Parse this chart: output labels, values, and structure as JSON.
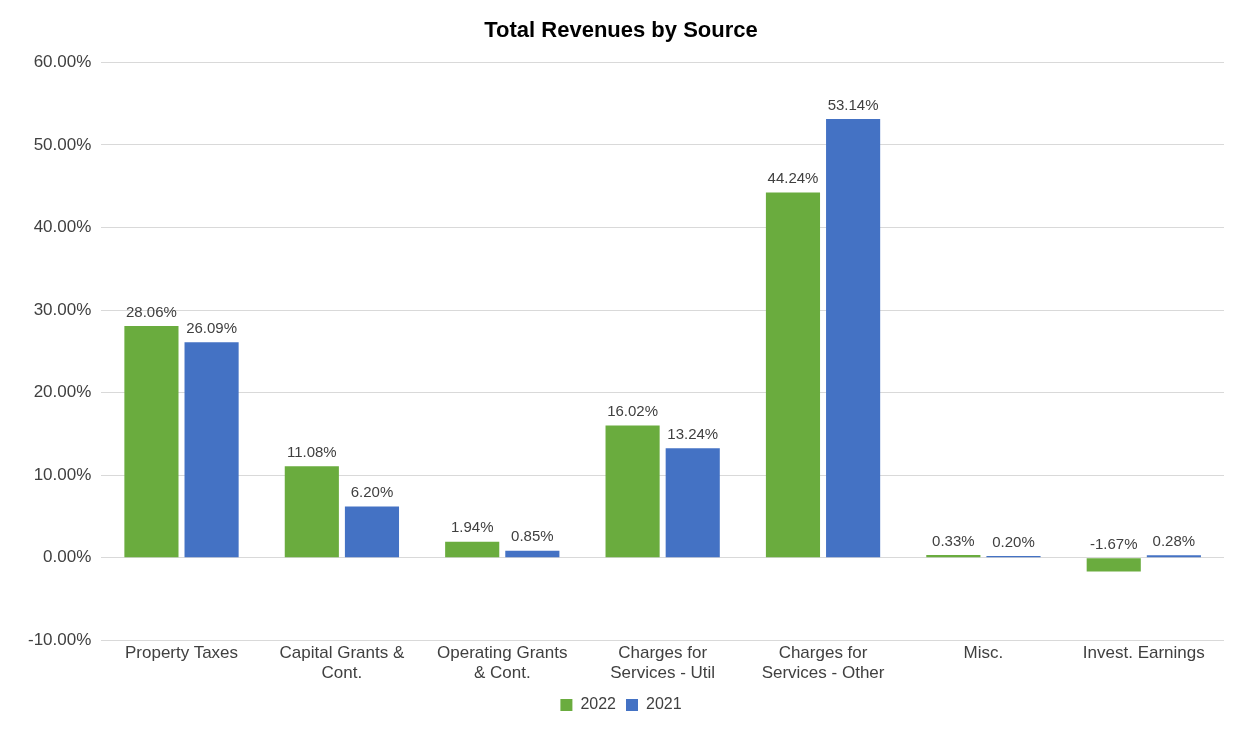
{
  "chart_data": {
    "type": "bar",
    "title": "Total Revenues by Source",
    "categories": [
      "Property Taxes",
      "Capital Grants & Cont.",
      "Operating Grants & Cont.",
      "Charges for Services - Util",
      "Charges for Services - Other",
      "Misc.",
      "Invest. Earnings"
    ],
    "series": [
      {
        "name": "2022",
        "color": "#6aac3e",
        "values": [
          28.06,
          11.08,
          1.94,
          16.02,
          44.24,
          0.33,
          -1.67
        ],
        "value_labels": [
          "28.06%",
          "11.08%",
          "1.94%",
          "16.02%",
          "44.24%",
          "0.33%",
          "-1.67%"
        ]
      },
      {
        "name": "2021",
        "color": "#4472c4",
        "values": [
          26.09,
          6.2,
          0.85,
          13.24,
          53.14,
          0.2,
          0.28
        ],
        "value_labels": [
          "26.09%",
          "6.20%",
          "0.85%",
          "13.24%",
          "53.14%",
          "0.20%",
          "0.28%"
        ]
      }
    ],
    "ylim": [
      -10,
      60
    ],
    "yticks": [
      {
        "value": -10,
        "label": "-10.00%"
      },
      {
        "value": 0,
        "label": "0.00%"
      },
      {
        "value": 10,
        "label": "10.00%"
      },
      {
        "value": 20,
        "label": "20.00%"
      },
      {
        "value": 30,
        "label": "30.00%"
      },
      {
        "value": 40,
        "label": "40.00%"
      },
      {
        "value": 50,
        "label": "50.00%"
      },
      {
        "value": 60,
        "label": "60.00%"
      }
    ],
    "grid": "y",
    "legend": "bottom"
  }
}
